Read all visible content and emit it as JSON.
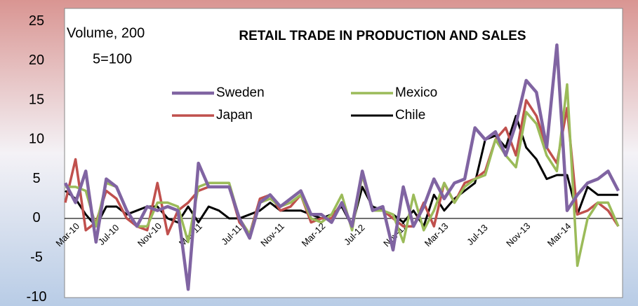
{
  "chart_data": {
    "type": "line",
    "title": "RETAIL TRADE IN PRODUCTION AND SALES",
    "ylabel_lines": [
      "Volume, 200",
      "5=100"
    ],
    "categories": [
      "Mar-10",
      null,
      null,
      null,
      "Jul-10",
      null,
      null,
      null,
      "Nov-10",
      null,
      null,
      null,
      "Mar-11",
      null,
      null,
      null,
      "Jul-11",
      null,
      null,
      null,
      "Nov-11",
      null,
      null,
      null,
      "Mar-12",
      null,
      null,
      null,
      "Jul-12",
      null,
      null,
      null,
      "Nov-12",
      null,
      null,
      null,
      "Mar-13",
      null,
      null,
      null,
      "Jul-13",
      null,
      null,
      null,
      "Nov-13",
      null,
      null,
      null,
      "Mar-14",
      null,
      null,
      null,
      null,
      null,
      null
    ],
    "series": [
      {
        "name": "Sweden",
        "color": "#8064a2",
        "values": [
          4.5,
          2,
          6,
          -3,
          5,
          4,
          1,
          -1,
          1.5,
          1,
          1.5,
          1,
          -9,
          7,
          4,
          4,
          4,
          0,
          -2.5,
          2,
          3,
          1.5,
          2.5,
          3.5,
          0.5,
          0.5,
          -0.5,
          2,
          -1,
          6,
          1,
          1.5,
          -4,
          4,
          -1,
          1.5,
          5,
          2.5,
          4.5,
          5,
          11.5,
          10,
          11,
          8,
          12,
          17.5,
          16,
          9,
          22,
          1,
          3,
          4.5,
          5,
          6,
          3.5
        ]
      },
      {
        "name": "Mexico",
        "color": "#9bbb59",
        "values": [
          4,
          4,
          3.5,
          -1,
          4.5,
          4,
          1,
          -1,
          -1,
          2,
          2,
          1.5,
          -3,
          4,
          4.5,
          4.5,
          4.5,
          0,
          -2,
          2,
          2.5,
          1.5,
          2,
          3,
          0,
          -0.5,
          0.5,
          3,
          -1.5,
          5.5,
          1,
          1,
          0.5,
          -3,
          3,
          -1.5,
          1,
          4.5,
          2,
          4,
          5,
          5.5,
          10,
          8,
          6.5,
          13.5,
          12,
          8,
          6,
          17,
          -6,
          0,
          2,
          2,
          -1
        ]
      },
      {
        "name": "Japan",
        "color": "#c0504d",
        "values": [
          2,
          7.5,
          -1.5,
          -0.5,
          3.5,
          2.5,
          0,
          -1,
          -1.5,
          4.5,
          -2,
          1,
          2,
          3.5,
          4,
          4,
          4,
          -0.5,
          -2,
          2.5,
          3,
          1,
          1.5,
          3,
          -0.5,
          0,
          0,
          2,
          -1,
          5.5,
          1,
          1,
          0,
          -1,
          -1,
          2,
          -1,
          4.5,
          2,
          4.5,
          5,
          6,
          10,
          11.5,
          8,
          15,
          13,
          9,
          7,
          14,
          0.5,
          1,
          2,
          1,
          -1
        ]
      },
      {
        "name": "Chile",
        "color": "#000000",
        "values": [
          3.5,
          2.5,
          0.5,
          -1,
          1.5,
          1.5,
          0.5,
          1,
          1.5,
          1.5,
          0,
          -0.5,
          1.5,
          -0.5,
          1.5,
          1,
          0,
          0,
          0.5,
          1,
          2,
          1,
          1,
          1,
          0.5,
          0,
          0.5,
          1.5,
          -1,
          4,
          1.5,
          1,
          0.5,
          -0.5,
          1,
          -1,
          3,
          1,
          2.5,
          3.5,
          4.5,
          10,
          10.5,
          9,
          13,
          9,
          7.5,
          5,
          5.5,
          5.5,
          0.5,
          4,
          3,
          3,
          3
        ]
      }
    ],
    "ylim": [
      -10,
      25
    ],
    "yticks": [
      -10,
      -5,
      0,
      5,
      10,
      15,
      20,
      25
    ],
    "grid": false
  }
}
